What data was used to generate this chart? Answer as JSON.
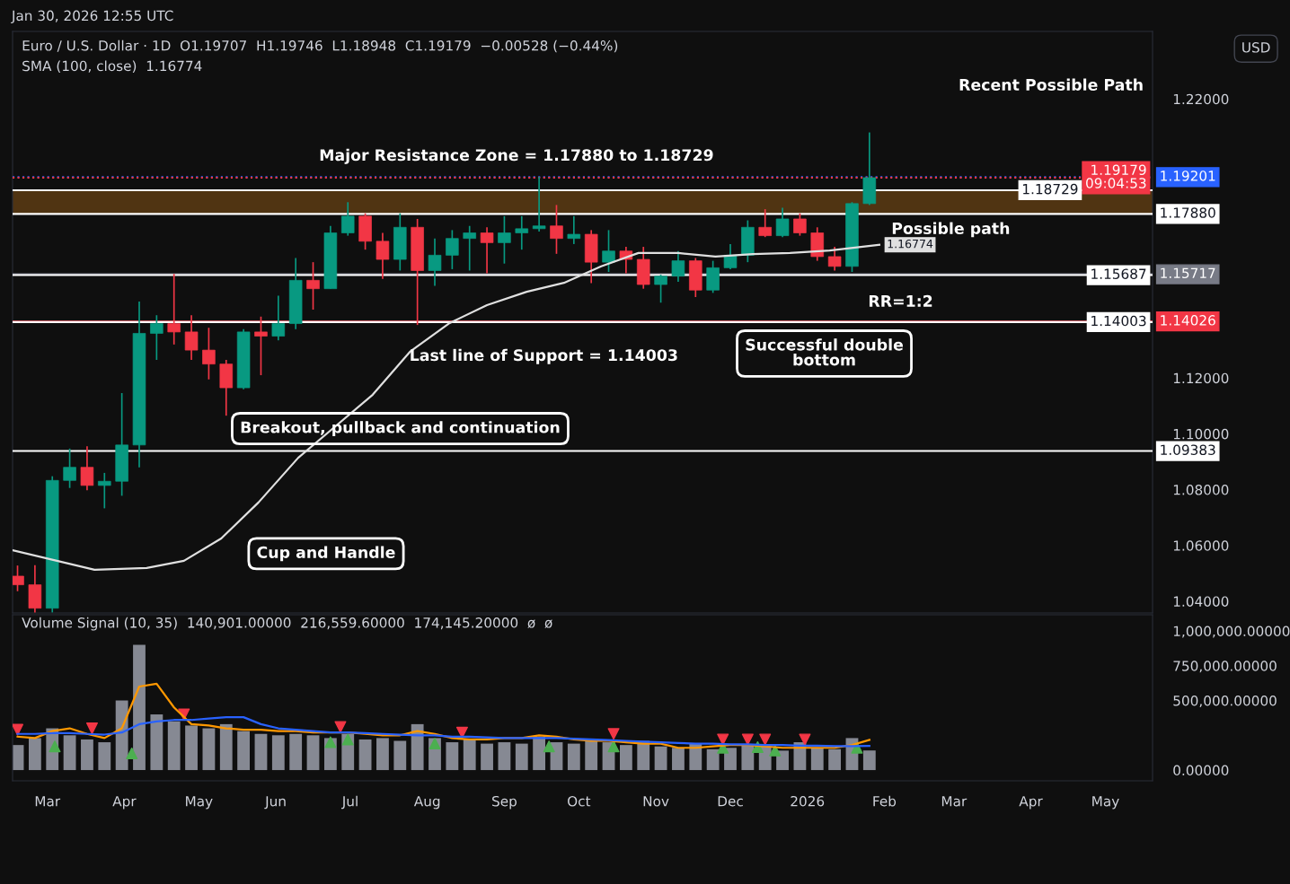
{
  "chart_data": [
    {
      "type": "candlestick",
      "title": "Euro / U.S. Dollar · 1D  O1.19707  H1.19746  L1.18948  C1.19179  −0.00528 (−0.44%)",
      "subtitle": "SMA (100, close)  1.16774",
      "x": [
        "2025-02-17",
        "2025-02-24",
        "2025-03-03",
        "2025-03-10",
        "2025-03-17",
        "2025-03-24",
        "2025-03-31",
        "2025-04-07",
        "2025-04-14",
        "2025-04-21",
        "2025-04-28",
        "2025-05-05",
        "2025-05-12",
        "2025-05-19",
        "2025-05-26",
        "2025-06-02",
        "2025-06-09",
        "2025-06-16",
        "2025-06-23",
        "2025-06-30",
        "2025-07-07",
        "2025-07-14",
        "2025-07-21",
        "2025-07-28",
        "2025-08-04",
        "2025-08-11",
        "2025-08-18",
        "2025-08-25",
        "2025-09-01",
        "2025-09-08",
        "2025-09-15",
        "2025-09-22",
        "2025-09-29",
        "2025-10-06",
        "2025-10-13",
        "2025-10-20",
        "2025-10-27",
        "2025-11-03",
        "2025-11-10",
        "2025-11-17",
        "2025-11-24",
        "2025-12-01",
        "2025-12-08",
        "2025-12-15",
        "2025-12-22",
        "2025-12-29",
        "2026-01-05",
        "2026-01-12",
        "2026-01-19",
        "2026-01-26"
      ],
      "ohlc": [
        [
          1.049,
          1.0528,
          1.0436,
          1.0459
        ],
        [
          1.0459,
          1.0529,
          1.036,
          1.0375
        ],
        [
          1.0375,
          1.0848,
          1.036,
          1.0833
        ],
        [
          1.0833,
          1.0947,
          1.0806,
          1.088
        ],
        [
          1.088,
          1.0955,
          1.0798,
          1.0815
        ],
        [
          1.0815,
          1.086,
          1.0733,
          1.083
        ],
        [
          1.083,
          1.1146,
          1.0778,
          1.096
        ],
        [
          1.096,
          1.1474,
          1.088,
          1.136
        ],
        [
          1.136,
          1.1425,
          1.1265,
          1.1395
        ],
        [
          1.1395,
          1.1573,
          1.132,
          1.1365
        ],
        [
          1.1365,
          1.1425,
          1.1265,
          1.13
        ],
        [
          1.13,
          1.138,
          1.1195,
          1.125
        ],
        [
          1.125,
          1.1265,
          1.1065,
          1.1165
        ],
        [
          1.1165,
          1.1375,
          1.116,
          1.1365
        ],
        [
          1.1365,
          1.142,
          1.121,
          1.135
        ],
        [
          1.135,
          1.1495,
          1.1335,
          1.1395
        ],
        [
          1.1395,
          1.163,
          1.1375,
          1.155
        ],
        [
          1.155,
          1.1615,
          1.1445,
          1.152
        ],
        [
          1.152,
          1.1745,
          1.152,
          1.172
        ],
        [
          1.172,
          1.183,
          1.171,
          1.178
        ],
        [
          1.178,
          1.179,
          1.166,
          1.169
        ],
        [
          1.169,
          1.172,
          1.1555,
          1.1625
        ],
        [
          1.1625,
          1.179,
          1.1585,
          1.174
        ],
        [
          1.174,
          1.177,
          1.139,
          1.1585
        ],
        [
          1.1585,
          1.17,
          1.153,
          1.164
        ],
        [
          1.164,
          1.173,
          1.159,
          1.17
        ],
        [
          1.17,
          1.1745,
          1.1585,
          1.172
        ],
        [
          1.172,
          1.174,
          1.1575,
          1.1685
        ],
        [
          1.1685,
          1.178,
          1.161,
          1.172
        ],
        [
          1.172,
          1.178,
          1.166,
          1.1735
        ],
        [
          1.1735,
          1.192,
          1.1725,
          1.1745
        ],
        [
          1.1745,
          1.182,
          1.1645,
          1.17
        ],
        [
          1.17,
          1.178,
          1.168,
          1.1715
        ],
        [
          1.1715,
          1.173,
          1.154,
          1.1615
        ],
        [
          1.1615,
          1.173,
          1.158,
          1.1655
        ],
        [
          1.1655,
          1.167,
          1.1575,
          1.1625
        ],
        [
          1.1625,
          1.167,
          1.152,
          1.1535
        ],
        [
          1.1535,
          1.157,
          1.147,
          1.1565
        ],
        [
          1.1565,
          1.1655,
          1.1545,
          1.162
        ],
        [
          1.162,
          1.163,
          1.149,
          1.1515
        ],
        [
          1.1515,
          1.162,
          1.1505,
          1.1595
        ],
        [
          1.1595,
          1.168,
          1.159,
          1.164
        ],
        [
          1.164,
          1.1765,
          1.1615,
          1.174
        ],
        [
          1.174,
          1.1805,
          1.1705,
          1.171
        ],
        [
          1.171,
          1.181,
          1.1705,
          1.177
        ],
        [
          1.177,
          1.179,
          1.171,
          1.172
        ],
        [
          1.172,
          1.174,
          1.162,
          1.1635
        ],
        [
          1.1635,
          1.167,
          1.1585,
          1.16
        ],
        [
          1.16,
          1.183,
          1.158,
          1.1825
        ],
        [
          1.1825,
          1.208,
          1.182,
          1.19179
        ]
      ],
      "series": [
        {
          "type": "line",
          "color": "#e0e0e0",
          "value_labels": [
            null,
            null,
            null,
            null,
            null,
            null,
            null,
            null,
            null,
            null,
            null,
            null,
            null,
            null,
            null,
            null,
            null,
            null,
            null,
            null,
            null,
            "1.16774"
          ],
          "x": [
            "2025-02-15",
            "2025-03-20",
            "2025-04-10",
            "2025-04-25",
            "2025-05-10",
            "2025-05-25",
            "2025-06-10",
            "2025-06-25",
            "2025-07-10",
            "2025-07-25",
            "2025-08-10",
            "2025-08-25",
            "2025-09-10",
            "2025-09-25",
            "2025-10-10",
            "2025-10-25",
            "2025-11-10",
            "2025-11-25",
            "2025-12-10",
            "2025-12-25",
            "2026-01-10",
            "2026-01-30"
          ],
          "values": [
            1.0583,
            1.0513,
            1.0519,
            1.0545,
            1.0625,
            1.0754,
            1.0914,
            1.1027,
            1.114,
            1.1294,
            1.1397,
            1.1461,
            1.1509,
            1.1541,
            1.16,
            1.1648,
            1.1648,
            1.1635,
            1.1644,
            1.1648,
            1.1657,
            1.16774
          ]
        }
      ],
      "xlim": [
        "2025-02-15",
        "2026-05-20"
      ],
      "ylim": [
        1.0358,
        1.2442
      ],
      "yticks": [
        {
          "value": 1.04,
          "label": "1.04000"
        },
        {
          "value": 1.06,
          "label": "1.06000"
        },
        {
          "value": 1.08,
          "label": "1.08000"
        },
        {
          "value": 1.1,
          "label": "1.10000"
        },
        {
          "value": 1.12,
          "label": "1.12000"
        },
        {
          "value": 1.22,
          "label": "1.22000"
        }
      ],
      "tick_labels": "y",
      "grid": false,
      "legend": false,
      "bands": [
        {
          "axis": "y",
          "from": 1.1788,
          "to": 1.18729,
          "color": "#f7931a",
          "label": null
        }
      ],
      "ref_lines": [
        {
          "axis": "y",
          "value": 1.19201,
          "label": "1.19201",
          "color": "#2962ff",
          "line_style": "dotted"
        },
        {
          "axis": "y",
          "value": 1.19179,
          "label": "1.19179\n09:04:53",
          "color": "#f23645",
          "line_style": "dotted"
        },
        {
          "axis": "y",
          "value": 1.18729,
          "label": "1.18729",
          "color": "#ffffff",
          "line_style": "solid"
        },
        {
          "axis": "y",
          "value": 1.1788,
          "label": "1.17880",
          "color": "#ffffff",
          "line_style": "solid"
        },
        {
          "axis": "y",
          "value": 1.15717,
          "label": "1.15717",
          "color": "#787b86",
          "line_style": "solid"
        },
        {
          "axis": "y",
          "value": 1.15687,
          "label": "1.15687",
          "color": "#ffffff",
          "line_style": "solid"
        },
        {
          "axis": "y",
          "value": 1.14026,
          "label": "1.14026",
          "color": "#f23645",
          "line_style": "solid"
        },
        {
          "axis": "y",
          "value": 1.14003,
          "label": "1.14003",
          "color": "#ffffff",
          "line_style": "solid"
        },
        {
          "axis": "y",
          "value": 1.09383,
          "label": "1.09383",
          "color": "#ffffff",
          "line_style": "solid"
        }
      ],
      "annotations": [
        "Jan 30, 2026 12:55 UTC",
        "USD",
        "Major Resistance Zone = 1.17880 to 1.18729",
        "Recent Possible Path",
        "Possible path",
        "RR=1:2",
        "Last line of Support = 1.14003",
        "Successful double\nbottom",
        "Breakout, pullback and continuation",
        "Cup and Handle"
      ]
    },
    {
      "type": "bar",
      "title": "Volume Signal (10, 35)  140,901.00000  216,559.60000  174,145.20000  ø  ø",
      "x": [
        "2025-02-17",
        "2025-02-24",
        "2025-03-03",
        "2025-03-10",
        "2025-03-17",
        "2025-03-24",
        "2025-03-31",
        "2025-04-07",
        "2025-04-14",
        "2025-04-21",
        "2025-04-28",
        "2025-05-05",
        "2025-05-12",
        "2025-05-19",
        "2025-05-26",
        "2025-06-02",
        "2025-06-09",
        "2025-06-16",
        "2025-06-23",
        "2025-06-30",
        "2025-07-07",
        "2025-07-14",
        "2025-07-21",
        "2025-07-28",
        "2025-08-04",
        "2025-08-11",
        "2025-08-18",
        "2025-08-25",
        "2025-09-01",
        "2025-09-08",
        "2025-09-15",
        "2025-09-22",
        "2025-09-29",
        "2025-10-06",
        "2025-10-13",
        "2025-10-20",
        "2025-10-27",
        "2025-11-03",
        "2025-11-10",
        "2025-11-17",
        "2025-11-24",
        "2025-12-01",
        "2025-12-08",
        "2025-12-15",
        "2025-12-22",
        "2025-12-29",
        "2026-01-05",
        "2026-01-12",
        "2026-01-19",
        "2026-01-26"
      ],
      "series": [
        {
          "type": "bar",
          "color": "#868993",
          "values": [
            180000,
            230000,
            300000,
            250000,
            220000,
            200000,
            500000,
            900000,
            400000,
            350000,
            320000,
            300000,
            330000,
            280000,
            260000,
            250000,
            260000,
            250000,
            230000,
            260000,
            220000,
            230000,
            210000,
            330000,
            230000,
            200000,
            220000,
            190000,
            200000,
            190000,
            240000,
            200000,
            190000,
            220000,
            200000,
            180000,
            210000,
            170000,
            160000,
            190000,
            150000,
            160000,
            180000,
            170000,
            140000,
            200000,
            160000,
            150000,
            230000,
            140901
          ]
        },
        {
          "type": "line",
          "color": "#ff9800",
          "values": [
            240000,
            230000,
            280000,
            300000,
            260000,
            230000,
            300000,
            600000,
            620000,
            450000,
            330000,
            320000,
            300000,
            290000,
            290000,
            280000,
            280000,
            270000,
            270000,
            270000,
            260000,
            250000,
            250000,
            280000,
            260000,
            230000,
            220000,
            220000,
            230000,
            230000,
            250000,
            240000,
            220000,
            210000,
            210000,
            200000,
            190000,
            190000,
            160000,
            160000,
            170000,
            180000,
            180000,
            170000,
            160000,
            160000,
            160000,
            160000,
            180000,
            216559.6
          ]
        },
        {
          "type": "line",
          "color": "#2962ff",
          "values": [
            260000,
            260000,
            265000,
            265000,
            260000,
            255000,
            270000,
            330000,
            350000,
            360000,
            360000,
            370000,
            380000,
            380000,
            330000,
            300000,
            290000,
            280000,
            270000,
            270000,
            265000,
            260000,
            255000,
            250000,
            250000,
            240000,
            240000,
            235000,
            230000,
            230000,
            230000,
            230000,
            225000,
            220000,
            215000,
            210000,
            205000,
            200000,
            195000,
            190000,
            190000,
            185000,
            185000,
            180000,
            180000,
            175000,
            175000,
            172000,
            172000,
            174145.2
          ]
        },
        {
          "type": "scatter",
          "color": "#4caf50",
          "marker": "triangle",
          "x": [
            "2025-03-04",
            "2025-04-04",
            "2025-06-23",
            "2025-06-30",
            "2025-08-04",
            "2025-09-19",
            "2025-10-15",
            "2025-11-28",
            "2025-12-12",
            "2025-12-19",
            "2026-01-21"
          ],
          "values": [
            170000,
            120000,
            200000,
            220000,
            190000,
            170000,
            170000,
            160000,
            165000,
            140000,
            160000
          ]
        },
        {
          "type": "scatter",
          "color": "#f23645",
          "marker": "triangle-down",
          "x": [
            "2025-02-17",
            "2025-03-19",
            "2025-04-25",
            "2025-06-27",
            "2025-08-15",
            "2025-10-15",
            "2025-11-28",
            "2025-12-08",
            "2025-12-15",
            "2025-12-31"
          ],
          "values": [
            290000,
            300000,
            400000,
            310000,
            270000,
            260000,
            220000,
            220000,
            220000,
            220000
          ]
        }
      ],
      "xlim": [
        "2025-02-15",
        "2026-05-20"
      ],
      "ylim": [
        -77000,
        1116000
      ],
      "xticks": [
        {
          "value": "2025-03-01",
          "label": "Mar"
        },
        {
          "value": "2025-04-01",
          "label": "Apr"
        },
        {
          "value": "2025-05-01",
          "label": "May"
        },
        {
          "value": "2025-06-01",
          "label": "Jun"
        },
        {
          "value": "2025-07-01",
          "label": "Jul"
        },
        {
          "value": "2025-08-01",
          "label": "Aug"
        },
        {
          "value": "2025-09-01",
          "label": "Sep"
        },
        {
          "value": "2025-10-01",
          "label": "Oct"
        },
        {
          "value": "2025-11-01",
          "label": "Nov"
        },
        {
          "value": "2025-12-01",
          "label": "Dec"
        },
        {
          "value": "2026-01-01",
          "label": "2026"
        },
        {
          "value": "2026-02-01",
          "label": "Feb"
        },
        {
          "value": "2026-03-01",
          "label": "Mar"
        },
        {
          "value": "2026-04-01",
          "label": "Apr"
        },
        {
          "value": "2026-05-01",
          "label": "May"
        }
      ],
      "yticks": [
        {
          "value": 0,
          "label": "0.00000"
        },
        {
          "value": 500000,
          "label": "500,000.00000"
        },
        {
          "value": 750000,
          "label": "750,000.00000"
        },
        {
          "value": 1000000,
          "label": "1,000,000.00000"
        }
      ],
      "grid": false,
      "legend": false
    }
  ]
}
